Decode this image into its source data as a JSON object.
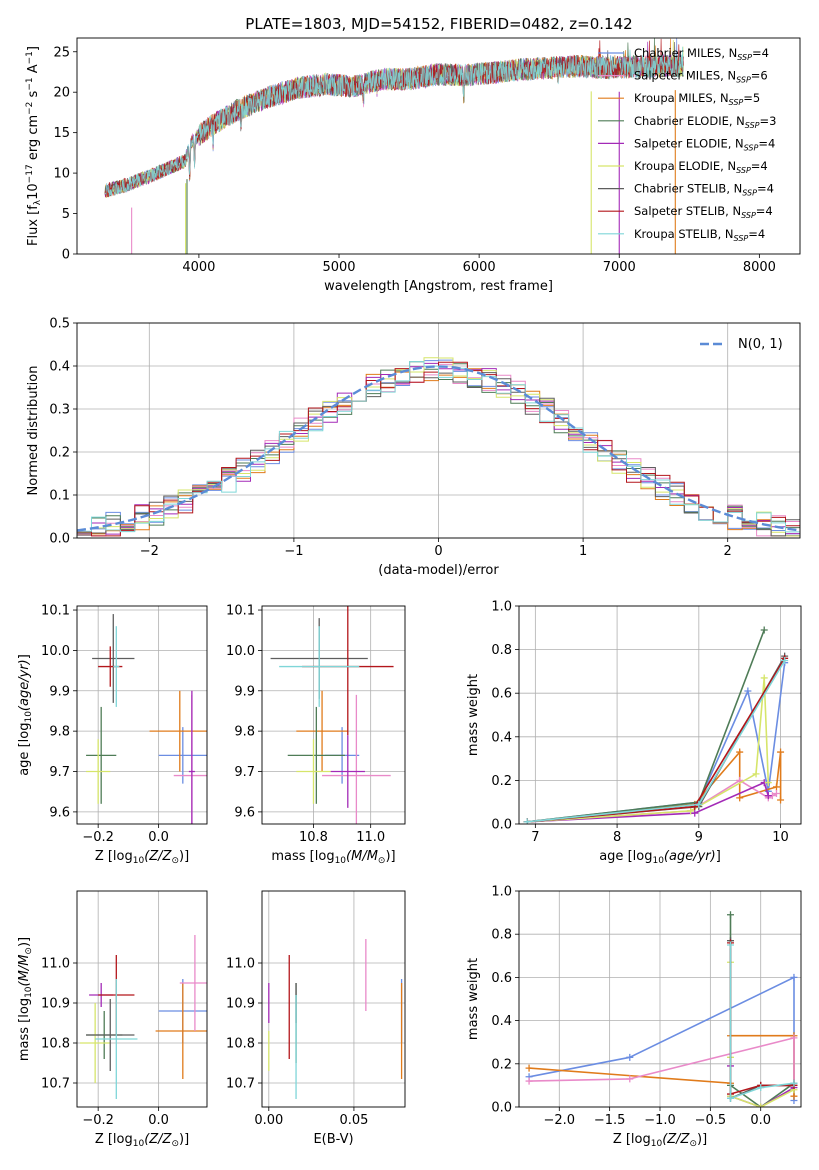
{
  "title": "PLATE=1803, MJD=54152, FIBERID=0482, z=0.142",
  "colors": [
    "#6b8de2",
    "#e07b1b",
    "#e98ac9",
    "#4f7c57",
    "#a32ab7",
    "#d6e56a",
    "#5e5e5e",
    "#b3161b",
    "#7fd6d8"
  ],
  "chart_data": [
    {
      "id": "spectrum",
      "type": "line",
      "xlabel": "wavelength [Angstrom, rest frame]",
      "ylabel": "Flux [f_λ 10^-17 erg cm^-2 s^-1 A^-1]",
      "xlim": [
        3130,
        8290
      ],
      "ylim": [
        0,
        26.7
      ],
      "xticks": [
        4000,
        5000,
        6000,
        7000,
        8000
      ],
      "yticks": [
        0,
        5,
        10,
        15,
        20,
        25
      ],
      "grid": false,
      "legend_position": "top-right",
      "wavelength_range": [
        3330,
        7460
      ],
      "continuum": {
        "x": [
          3330,
          3500,
          3700,
          3900,
          3950,
          4100,
          4300,
          4500,
          4700,
          4900,
          5100,
          5300,
          5500,
          5700,
          5900,
          6100,
          6300,
          6500,
          6700,
          6900,
          7100,
          7300,
          7460
        ],
        "y": [
          7.8,
          8.6,
          10.0,
          11.5,
          14.0,
          16.0,
          18.0,
          19.4,
          20.5,
          21.0,
          20.7,
          21.6,
          21.6,
          22.2,
          22.1,
          22.4,
          22.8,
          23.0,
          23.2,
          23.0,
          23.1,
          23.2,
          23.3
        ]
      },
      "model_edges": [
        {
          "series": "Salpeter MILES",
          "cut": 3520
        },
        {
          "series": "Kroupa ELODIE",
          "cut": 3905
        },
        {
          "series": "Chabrier ELODIE",
          "cut": 3915
        },
        {
          "series": "Kroupa ELODIE",
          "cut": 6800
        },
        {
          "series": "Salpeter ELODIE",
          "cut": 7000
        },
        {
          "series": "Kroupa MILES",
          "cut": 7400
        }
      ],
      "series": [
        {
          "name": "Chabrier MILES, N_SSP=4",
          "label": "Chabrier MILES, N",
          "sub": "SSP",
          "value": "=4",
          "color": "#6b8de2"
        },
        {
          "name": "Salpeter MILES, N_SSP=6",
          "label": "Salpeter MILES, N",
          "sub": "SSP",
          "value": "=6",
          "color": "#e98ac9"
        },
        {
          "name": "Kroupa MILES, N_SSP=5",
          "label": "Kroupa MILES, N",
          "sub": "SSP",
          "value": "=5",
          "color": "#e07b1b"
        },
        {
          "name": "Chabrier ELODIE, N_SSP=3",
          "label": "Chabrier ELODIE, N",
          "sub": "SSP",
          "value": "=3",
          "color": "#4f7c57"
        },
        {
          "name": "Salpeter ELODIE, N_SSP=4",
          "label": "Salpeter ELODIE, N",
          "sub": "SSP",
          "value": "=4",
          "color": "#a32ab7"
        },
        {
          "name": "Kroupa ELODIE, N_SSP=4",
          "label": "Kroupa ELODIE, N",
          "sub": "SSP",
          "value": "=4",
          "color": "#d6e56a"
        },
        {
          "name": "Chabrier STELIB, N_SSP=4",
          "label": "Chabrier STELIB, N",
          "sub": "SSP",
          "value": "=4",
          "color": "#5e5e5e"
        },
        {
          "name": "Salpeter STELIB, N_SSP=4",
          "label": "Salpeter STELIB, N",
          "sub": "SSP",
          "value": "=4",
          "color": "#b3161b"
        },
        {
          "name": "Kroupa STELIB, N_SSP=4",
          "label": "Kroupa STELIB, N",
          "sub": "SSP",
          "value": "=4",
          "color": "#7fd6d8"
        }
      ]
    },
    {
      "id": "residuals",
      "type": "histogram",
      "xlabel": "(data-model)/error",
      "ylabel": "Normed distribution",
      "xlim": [
        -2.5,
        2.5
      ],
      "ylim": [
        0,
        0.5
      ],
      "xticks": [
        -2,
        -1,
        0,
        1,
        2
      ],
      "yticks": [
        0.0,
        0.1,
        0.2,
        0.3,
        0.4,
        0.5
      ],
      "grid": true,
      "legend_position": "top-right",
      "legend": "N(0, 1)",
      "reference_curve": {
        "name": "N(0, 1)",
        "mean": 0,
        "sigma": 1,
        "color": "#5b8bd6"
      },
      "bin_width": 0.1,
      "bins_from": -2.5,
      "series_colors": [
        "#6b8de2",
        "#e07b1b",
        "#e98ac9",
        "#4f7c57",
        "#a32ab7",
        "#d6e56a",
        "#5e5e5e",
        "#b3161b",
        "#7fd6d8"
      ]
    },
    {
      "id": "age_vs_z",
      "type": "errorbar",
      "xlabel": "Z [log10(Z/Z⊙)]",
      "ylabel": "age [log10(age/yr)]",
      "xlim": [
        -0.27,
        0.16
      ],
      "ylim": [
        9.57,
        10.11
      ],
      "xticks": [
        -0.2,
        0.0
      ],
      "yticks": [
        9.6,
        9.7,
        9.8,
        9.9,
        10.0,
        10.1
      ],
      "grid": true,
      "points": [
        {
          "x": 0.08,
          "xerr": 0.08,
          "y": 9.74,
          "yerr": 0.07,
          "color": "#6b8de2"
        },
        {
          "x": 0.07,
          "xerr": 0.1,
          "y": 9.8,
          "yerr": 0.1,
          "color": "#e07b1b"
        },
        {
          "x": 0.11,
          "xerr": 0.06,
          "y": 9.69,
          "yerr": 0.2,
          "color": "#e98ac9"
        },
        {
          "x": -0.19,
          "xerr": 0.05,
          "y": 9.74,
          "yerr": 0.12,
          "color": "#4f7c57"
        },
        {
          "x": 0.11,
          "xerr": 0.01,
          "y": 9.7,
          "yerr": 0.2,
          "color": "#a32ab7"
        },
        {
          "x": -0.2,
          "xerr": 0.04,
          "y": 9.7,
          "yerr": 0.08,
          "color": "#d6e56a"
        },
        {
          "x": -0.15,
          "xerr": 0.07,
          "y": 9.98,
          "yerr": 0.11,
          "color": "#5e5e5e"
        },
        {
          "x": -0.16,
          "xerr": 0.04,
          "y": 9.96,
          "yerr": 0.05,
          "color": "#b3161b"
        },
        {
          "x": -0.14,
          "xerr": 0.01,
          "y": 9.96,
          "yerr": 0.1,
          "color": "#7fd6d8"
        }
      ]
    },
    {
      "id": "age_vs_mass",
      "type": "errorbar",
      "xlabel": "mass [log10(M/M⊙)]",
      "ylabel": "",
      "xlim": [
        10.62,
        11.12
      ],
      "ylim": [
        9.57,
        10.11
      ],
      "xticks": [
        10.8,
        11.0
      ],
      "yticks": [
        9.6,
        9.7,
        9.8,
        9.9,
        10.0,
        10.1
      ],
      "grid": true,
      "points": [
        {
          "x": 10.9,
          "xerr": 0.06,
          "y": 9.74,
          "yerr": 0.07,
          "color": "#6b8de2"
        },
        {
          "x": 10.83,
          "xerr": 0.09,
          "y": 9.8,
          "yerr": 0.1,
          "color": "#e07b1b"
        },
        {
          "x": 10.95,
          "xerr": 0.12,
          "y": 9.69,
          "yerr": 0.2,
          "color": "#e98ac9"
        },
        {
          "x": 10.81,
          "xerr": 0.1,
          "y": 9.74,
          "yerr": 0.12,
          "color": "#4f7c57"
        },
        {
          "x": 10.92,
          "xerr": 0.06,
          "y": 9.7,
          "yerr": 0.09,
          "color": "#a32ab7"
        },
        {
          "x": 10.8,
          "xerr": 0.06,
          "y": 9.7,
          "yerr": 0.08,
          "color": "#d6e56a"
        },
        {
          "x": 10.82,
          "xerr": 0.17,
          "y": 9.98,
          "yerr": 0.1,
          "color": "#5e5e5e"
        },
        {
          "x": 10.92,
          "xerr": 0.16,
          "y": 9.96,
          "yerr": 0.17,
          "color": "#b3161b"
        },
        {
          "x": 10.82,
          "xerr": 0.14,
          "y": 9.96,
          "yerr": 0.1,
          "color": "#7fd6d8"
        }
      ]
    },
    {
      "id": "weight_vs_age",
      "type": "line",
      "xlabel": "age [log10(age/yr)]",
      "ylabel": "mass weight",
      "xlim": [
        6.8,
        10.25
      ],
      "ylim": [
        0,
        1.0
      ],
      "xticks": [
        7,
        8,
        9,
        10
      ],
      "yticks": [
        0.0,
        0.2,
        0.4,
        0.6,
        0.8,
        1.0
      ],
      "grid": true,
      "series": [
        {
          "color": "#6b8de2",
          "x": [
            6.9,
            9.0,
            9.6,
            9.85,
            10.05
          ],
          "y": [
            0.01,
            0.1,
            0.61,
            0.15,
            0.74
          ]
        },
        {
          "color": "#e07b1b",
          "x": [
            6.9,
            8.95,
            9.5,
            9.5,
            9.95,
            10.0,
            10.0
          ],
          "y": [
            0.01,
            0.09,
            0.33,
            0.12,
            0.17,
            0.33,
            0.11
          ]
        },
        {
          "color": "#e98ac9",
          "x": [
            6.9,
            8.9,
            9.5,
            9.85,
            9.9,
            9.95
          ],
          "y": [
            0.01,
            0.06,
            0.2,
            0.12,
            0.13,
            0.14
          ]
        },
        {
          "color": "#4f7c57",
          "x": [
            6.9,
            9.0,
            9.8
          ],
          "y": [
            0.01,
            0.1,
            0.89
          ]
        },
        {
          "color": "#a32ab7",
          "x": [
            6.9,
            8.95,
            9.8,
            9.85
          ],
          "y": [
            0.01,
            0.05,
            0.19,
            0.13
          ]
        },
        {
          "color": "#d6e56a",
          "x": [
            6.9,
            8.9,
            9.7,
            9.8,
            9.85
          ],
          "y": [
            0.01,
            0.06,
            0.23,
            0.67,
            0.19
          ]
        },
        {
          "color": "#5e5e5e",
          "x": [
            6.9,
            9.0,
            10.05
          ],
          "y": [
            0.01,
            0.08,
            0.77
          ]
        },
        {
          "color": "#b3161b",
          "x": [
            6.9,
            8.95,
            10.05
          ],
          "y": [
            0.01,
            0.08,
            0.76
          ]
        },
        {
          "color": "#7fd6d8",
          "x": [
            6.9,
            9.0,
            10.05
          ],
          "y": [
            0.01,
            0.09,
            0.75
          ]
        }
      ]
    },
    {
      "id": "mass_vs_z",
      "type": "errorbar",
      "xlabel": "Z [log10(Z/Z⊙)]",
      "ylabel": "mass [log10(M/M⊙)]",
      "xlim": [
        -0.27,
        0.16
      ],
      "ylim": [
        10.64,
        11.18
      ],
      "xticks": [
        -0.2,
        0.0
      ],
      "yticks": [
        10.7,
        10.8,
        10.9,
        11.0
      ],
      "grid": true,
      "points": [
        {
          "x": 0.08,
          "xerr": 0.08,
          "y": 10.88,
          "yerr": 0.08,
          "color": "#6b8de2"
        },
        {
          "x": 0.08,
          "xerr": 0.09,
          "y": 10.83,
          "yerr": 0.12,
          "color": "#e07b1b"
        },
        {
          "x": 0.12,
          "xerr": 0.05,
          "y": 10.95,
          "yerr": 0.12,
          "color": "#e98ac9"
        },
        {
          "x": -0.18,
          "xerr": 0.06,
          "y": 10.82,
          "yerr": 0.06,
          "color": "#4f7c57"
        },
        {
          "x": -0.19,
          "xerr": 0.04,
          "y": 10.92,
          "yerr": 0.03,
          "color": "#a32ab7"
        },
        {
          "x": -0.21,
          "xerr": 0.05,
          "y": 10.8,
          "yerr": 0.1,
          "color": "#d6e56a"
        },
        {
          "x": -0.16,
          "xerr": 0.08,
          "y": 10.82,
          "yerr": 0.09,
          "color": "#5e5e5e"
        },
        {
          "x": -0.14,
          "xerr": 0.06,
          "y": 10.92,
          "yerr": 0.1,
          "color": "#b3161b"
        },
        {
          "x": -0.14,
          "xerr": 0.07,
          "y": 10.81,
          "yerr": 0.15,
          "color": "#7fd6d8"
        }
      ]
    },
    {
      "id": "mass_vs_ebv",
      "type": "errorbar",
      "xlabel": "E(B-V)",
      "ylabel": "",
      "xlim": [
        -0.004,
        0.08
      ],
      "ylim": [
        10.64,
        11.18
      ],
      "xticks": [
        0.0,
        0.05
      ],
      "yticks": [
        10.7,
        10.8,
        10.9,
        11.0
      ],
      "grid": true,
      "points": [
        {
          "x": 0.078,
          "y": 10.88,
          "yerr": 0.08,
          "color": "#6b8de2"
        },
        {
          "x": 0.078,
          "y": 10.83,
          "yerr": 0.12,
          "color": "#e07b1b"
        },
        {
          "x": 0.057,
          "y": 10.97,
          "yerr": 0.09,
          "color": "#e98ac9"
        },
        {
          "x": 0.016,
          "y": 10.85,
          "yerr": 0.1,
          "color": "#4f7c57"
        },
        {
          "x": 0.0,
          "y": 10.9,
          "yerr": 0.05,
          "color": "#a32ab7"
        },
        {
          "x": 0.0,
          "y": 10.78,
          "yerr": 0.05,
          "color": "#d6e56a"
        },
        {
          "x": 0.016,
          "y": 10.9,
          "yerr": 0.05,
          "color": "#5e5e5e"
        },
        {
          "x": 0.012,
          "y": 10.89,
          "yerr": 0.13,
          "color": "#b3161b"
        },
        {
          "x": 0.016,
          "y": 10.79,
          "yerr": 0.13,
          "color": "#7fd6d8"
        }
      ]
    },
    {
      "id": "weight_vs_z",
      "type": "line",
      "xlabel": "Z [log10(Z/Z⊙)]",
      "ylabel": "mass weight",
      "xlim": [
        -2.4,
        0.4
      ],
      "ylim": [
        0,
        1.0
      ],
      "xticks": [
        -2.0,
        -1.5,
        -1.0,
        -0.5,
        0.0
      ],
      "yticks": [
        0.0,
        0.2,
        0.4,
        0.6,
        0.8,
        1.0
      ],
      "grid": true,
      "series": [
        {
          "color": "#6b8de2",
          "x": [
            -2.3,
            -1.3,
            0.33,
            0.33,
            0.33
          ],
          "y": [
            0.14,
            0.23,
            0.6,
            0.1,
            0.03
          ]
        },
        {
          "color": "#e07b1b",
          "x": [
            -2.3,
            -0.3,
            -0.3,
            0.33,
            0.33
          ],
          "y": [
            0.18,
            0.11,
            0.33,
            0.33,
            0.05
          ]
        },
        {
          "color": "#e98ac9",
          "x": [
            -2.3,
            -1.3,
            0.33,
            0.33
          ],
          "y": [
            0.12,
            0.13,
            0.32,
            0.1
          ]
        },
        {
          "color": "#4f7c57",
          "x": [
            -0.3,
            -0.3,
            0.0,
            0.33
          ],
          "y": [
            0.89,
            0.1,
            0.0,
            0.11
          ]
        },
        {
          "color": "#a32ab7",
          "x": [
            -0.3,
            -0.3,
            0.0,
            0.33
          ],
          "y": [
            0.19,
            0.05,
            0.0,
            0.09
          ]
        },
        {
          "color": "#d6e56a",
          "x": [
            -0.3,
            -0.3,
            -0.3,
            0.0,
            0.33
          ],
          "y": [
            0.67,
            0.23,
            0.05,
            0.0,
            0.08
          ]
        },
        {
          "color": "#5e5e5e",
          "x": [
            -0.3,
            -0.3,
            0.0,
            0.33
          ],
          "y": [
            0.77,
            0.04,
            0.1,
            0.1
          ]
        },
        {
          "color": "#b3161b",
          "x": [
            -0.3,
            -0.3,
            0.0,
            0.33
          ],
          "y": [
            0.76,
            0.06,
            0.1,
            0.1
          ]
        },
        {
          "color": "#7fd6d8",
          "x": [
            -0.3,
            -0.3,
            0.0,
            0.33
          ],
          "y": [
            0.75,
            0.04,
            0.09,
            0.11
          ]
        }
      ]
    }
  ]
}
